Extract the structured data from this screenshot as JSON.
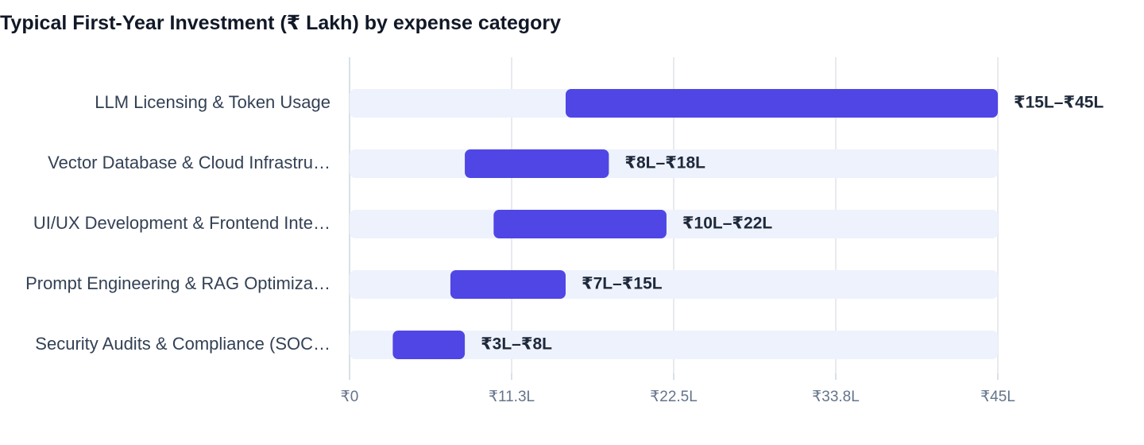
{
  "chart_data": {
    "type": "bar",
    "subtype": "floating-range",
    "title": "Typical First-Year Investment (₹ Lakh) by expense category",
    "xlabel": "",
    "ylabel": "",
    "xlim": [
      0,
      45
    ],
    "xticks": [
      0,
      11.25,
      22.5,
      33.75,
      45
    ],
    "xtick_labels": [
      "₹0",
      "₹11.3L",
      "₹22.5L",
      "₹33.8L",
      "₹45L"
    ],
    "grid": true,
    "legend": "none",
    "categories": [
      "LLM Licensing & Token Usage",
      "Vector Database & Cloud Infrastru…",
      "UI/UX Development & Frontend Inte…",
      "Prompt Engineering & RAG Optimiza…",
      "Security Audits & Compliance (SOC…"
    ],
    "ranges": [
      [
        15,
        45
      ],
      [
        8,
        18
      ],
      [
        10,
        22
      ],
      [
        7,
        15
      ],
      [
        3,
        8
      ]
    ],
    "value_labels": [
      "₹15L–₹45L",
      "₹8L–₹18L",
      "₹10L–₹22L",
      "₹7L–₹15L",
      "₹3L–₹8L"
    ],
    "colors": {
      "bar": "#4f46e5",
      "track": "#eef2fd",
      "grid": "#e2e4ea",
      "axis": "#cbd5e1"
    }
  }
}
